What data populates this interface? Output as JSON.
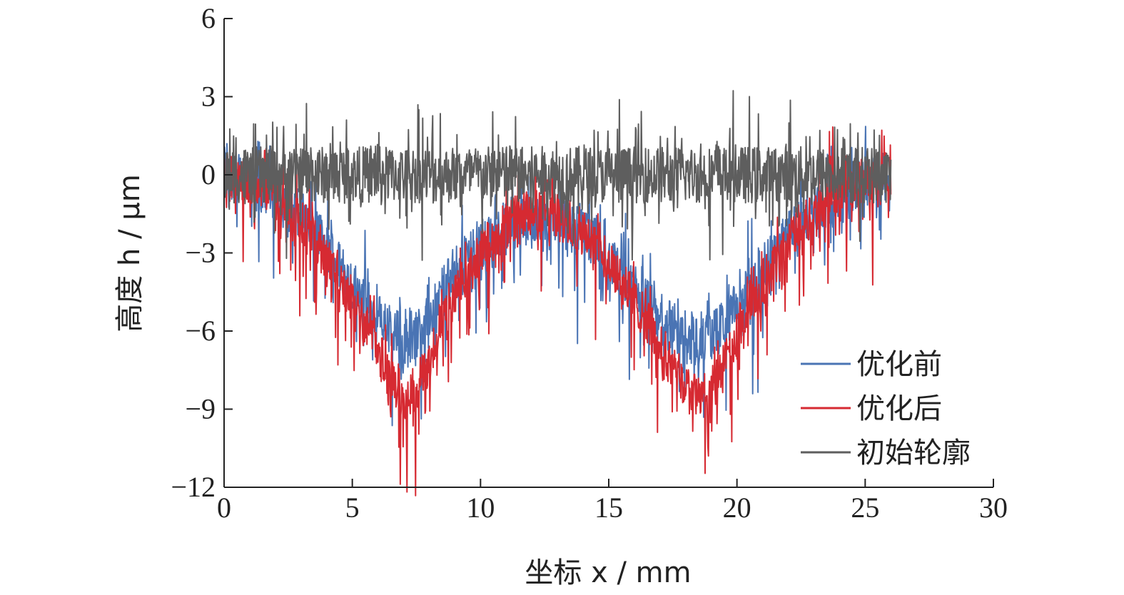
{
  "chart_data": {
    "type": "line",
    "title": "",
    "xlabel": "坐标 x / mm",
    "ylabel": "高度 h / μm",
    "xlim": [
      0,
      30
    ],
    "ylim": [
      -12,
      6
    ],
    "xticks": [
      0,
      5,
      10,
      15,
      20,
      25,
      30
    ],
    "xtick_labels": [
      "0",
      "5",
      "10",
      "15",
      "20",
      "25",
      "30"
    ],
    "yticks": [
      6,
      3,
      0,
      -3,
      -6,
      -9,
      -12
    ],
    "ytick_labels": [
      "6",
      "3",
      "0",
      "−3",
      "−6",
      "−9",
      "−12"
    ],
    "grid": false,
    "legend_position": "bottom-right",
    "x": [
      0,
      0.5,
      1,
      1.5,
      2,
      2.5,
      3,
      3.5,
      4,
      4.5,
      5,
      5.5,
      6,
      6.5,
      7,
      7.5,
      8,
      8.5,
      9,
      9.5,
      10,
      10.5,
      11,
      11.5,
      12,
      12.5,
      13,
      13.5,
      14,
      14.5,
      15,
      15.5,
      16,
      16.5,
      17,
      17.5,
      18,
      18.5,
      19,
      19.5,
      20,
      20.5,
      21,
      21.5,
      22,
      22.5,
      23,
      23.5,
      24,
      24.5,
      25,
      25.5,
      26
    ],
    "series": [
      {
        "name": "优化前",
        "color": "#4a74b4",
        "values": [
          0,
          -0.2,
          -0.3,
          -0.5,
          -0.8,
          -1.2,
          -1.6,
          -2.2,
          -2.8,
          -3.5,
          -4.2,
          -4.9,
          -5.5,
          -6.0,
          -6.3,
          -6.1,
          -5.4,
          -4.6,
          -3.8,
          -3.1,
          -2.6,
          -2.2,
          -2.0,
          -1.8,
          -1.7,
          -1.7,
          -1.8,
          -2.0,
          -2.3,
          -2.7,
          -3.2,
          -3.8,
          -4.4,
          -5.0,
          -5.5,
          -5.9,
          -6.2,
          -6.4,
          -6.2,
          -5.8,
          -5.1,
          -4.4,
          -3.7,
          -3.0,
          -2.4,
          -1.9,
          -1.4,
          -1.0,
          -0.7,
          -0.4,
          -0.2,
          -0.1,
          0
        ]
      },
      {
        "name": "优化后",
        "color": "#d62a32",
        "values": [
          0,
          -0.2,
          -0.3,
          -0.5,
          -0.8,
          -1.2,
          -1.7,
          -2.4,
          -3.1,
          -3.9,
          -4.8,
          -5.7,
          -6.6,
          -7.6,
          -8.5,
          -8.2,
          -7.0,
          -5.8,
          -4.7,
          -3.8,
          -3.0,
          -2.4,
          -1.9,
          -1.6,
          -1.4,
          -1.4,
          -1.5,
          -1.8,
          -2.2,
          -2.7,
          -3.3,
          -4.0,
          -4.8,
          -5.6,
          -6.5,
          -7.4,
          -8.2,
          -8.6,
          -8.3,
          -7.4,
          -6.3,
          -5.2,
          -4.2,
          -3.3,
          -2.5,
          -1.9,
          -1.4,
          -1.0,
          -0.7,
          -0.4,
          -0.2,
          -0.1,
          0
        ]
      },
      {
        "name": "初始轮廓",
        "color": "#5e5e5e",
        "values": [
          0,
          0,
          0,
          0,
          0,
          0,
          0,
          0,
          0,
          0,
          0,
          0,
          0,
          0,
          0,
          0,
          0,
          0,
          0,
          0,
          0,
          0,
          0,
          0,
          0,
          0,
          0,
          0,
          0,
          0,
          0,
          0,
          0,
          0,
          0,
          0,
          0,
          0,
          0,
          0,
          0,
          0,
          0,
          0,
          0,
          0,
          0,
          0,
          0,
          0,
          0,
          0,
          0
        ]
      }
    ]
  }
}
